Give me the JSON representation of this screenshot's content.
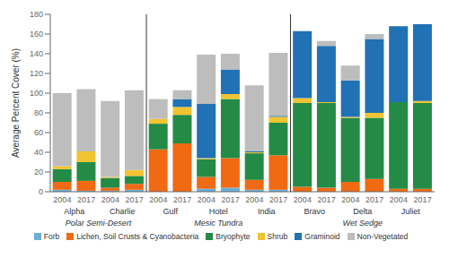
{
  "chart_data": {
    "type": "bar",
    "stacked": true,
    "ylabel": "Average Percent Cover (%)",
    "categories": [
      "2004",
      "2017",
      "2004",
      "2017",
      "2004",
      "2017",
      "2004",
      "2017",
      "2004",
      "2017",
      "2004",
      "2017",
      "2004",
      "2017",
      "2004",
      "2017"
    ],
    "plot_labels": [
      "Alpha",
      "Charlie",
      "Gulf",
      "Hotel",
      "India",
      "Bravo",
      "Delta",
      "Juliet"
    ],
    "group_labels": [
      "Polar Semi-Desert",
      "Mesic Tundra",
      "Wet Sedge"
    ],
    "series": [
      {
        "name": "Forb",
        "color": "#6baed6",
        "values": [
          2,
          1,
          1,
          2,
          0,
          0,
          3,
          4,
          2,
          2,
          0,
          0,
          0,
          0,
          0,
          0
        ]
      },
      {
        "name": "Lichen, Soil Crusts & Cyanobacteria",
        "color": "#f16913",
        "values": [
          8,
          10,
          3,
          6,
          43,
          49,
          12,
          30,
          10,
          35,
          5,
          4,
          10,
          13,
          3,
          3
        ]
      },
      {
        "name": "Bryophyte",
        "color": "#238b45",
        "values": [
          13,
          19,
          10,
          8,
          26,
          29,
          18,
          60,
          27,
          33,
          85,
          86,
          65,
          62,
          88,
          87
        ]
      },
      {
        "name": "Shrub",
        "color": "#f0c431",
        "values": [
          3,
          11,
          1,
          6,
          5,
          8,
          1,
          5,
          1,
          6,
          5,
          1,
          1,
          5,
          0,
          2
        ]
      },
      {
        "name": "Graminoid",
        "color": "#2171b5",
        "values": [
          0,
          0,
          0,
          0,
          0,
          8,
          55,
          25,
          1,
          1,
          68,
          57,
          37,
          75,
          77,
          78
        ]
      },
      {
        "name": "Non-Vegetated",
        "color": "#bdbdbd",
        "values": [
          74,
          63,
          77,
          81,
          20,
          9,
          50,
          16,
          67,
          64,
          0,
          5,
          15,
          5,
          0,
          0
        ]
      }
    ],
    "ylim": [
      0,
      180
    ],
    "yticks": [
      0,
      20,
      40,
      60,
      80,
      100,
      120,
      140,
      160,
      180
    ],
    "grid": false,
    "legend": "bottom"
  }
}
